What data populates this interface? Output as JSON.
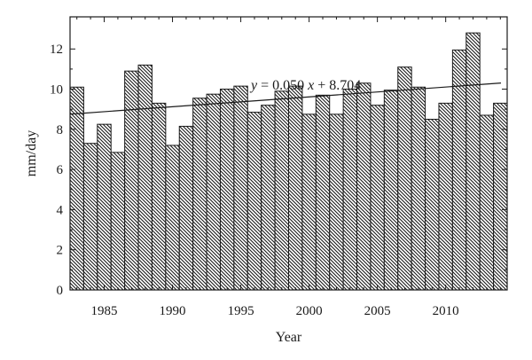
{
  "chart_data": {
    "type": "bar",
    "title": "",
    "xlabel": "Year",
    "ylabel": "mm/day",
    "x": [
      1983,
      1984,
      1985,
      1986,
      1987,
      1988,
      1989,
      1990,
      1991,
      1992,
      1993,
      1994,
      1995,
      1996,
      1997,
      1998,
      1999,
      2000,
      2001,
      2002,
      2003,
      2004,
      2005,
      2006,
      2007,
      2008,
      2009,
      2010,
      2011,
      2012,
      2013,
      2014
    ],
    "values": [
      10.1,
      7.3,
      8.25,
      6.85,
      10.9,
      11.2,
      9.3,
      7.2,
      8.15,
      9.55,
      9.75,
      10.0,
      10.15,
      8.85,
      9.2,
      9.9,
      10.15,
      8.75,
      9.7,
      8.75,
      10.0,
      10.3,
      9.2,
      9.95,
      11.1,
      10.1,
      8.5,
      9.3,
      11.95,
      12.8,
      8.7,
      9.3
    ],
    "xlim": [
      1982.5,
      2014.5
    ],
    "ylim": [
      0,
      13.6
    ],
    "x_ticks": [
      1985,
      1990,
      1995,
      2000,
      2005,
      2010
    ],
    "x_tick_labels": [
      "1985",
      "1990",
      "1995",
      "2000",
      "2005",
      "2010"
    ],
    "y_ticks": [
      0,
      2,
      4,
      6,
      8,
      10,
      12
    ],
    "y_tick_labels": [
      "0",
      "2",
      "4",
      "6",
      "8",
      "10",
      "12"
    ],
    "bar_fill": "diagonal-hatch",
    "bar_color": "#1a1a1a",
    "trendline": {
      "slope": 0.05,
      "intercept": 8.704,
      "x_start": 1983,
      "x_end": 2014,
      "equation_text": {
        "y": "y",
        "equals": " = 0.050",
        "x": "x",
        "rest": " + 8.704"
      }
    },
    "grid": false,
    "legend": "none"
  }
}
